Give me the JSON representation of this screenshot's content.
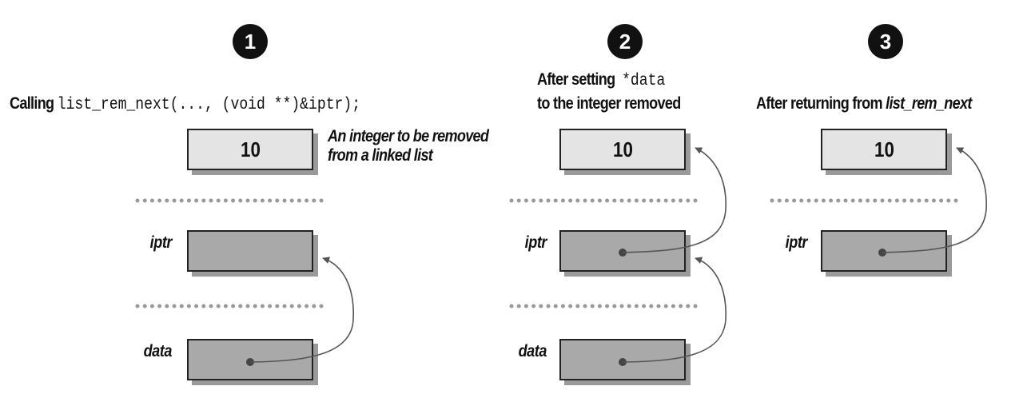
{
  "steps": [
    {
      "number": "1",
      "caption_prefix": "Calling ",
      "caption_code": "list_rem_next(..., (void **)&iptr);",
      "annotation_line1": "An integer to be removed",
      "annotation_line2": "from a linked list",
      "top_value": "10",
      "iptr_label": "iptr",
      "data_label": "data"
    },
    {
      "number": "2",
      "caption_line1_text": "After setting",
      "caption_line1_code": "*data",
      "caption_line2": "to the integer removed",
      "top_value": "10",
      "iptr_label": "iptr",
      "data_label": "data"
    },
    {
      "number": "3",
      "caption_prefix": "After returning from ",
      "caption_italic": "list_rem_next",
      "top_value": "10",
      "iptr_label": "iptr"
    }
  ],
  "colors": {
    "ink": "#111111",
    "light_box": "#e4e4e4",
    "dark_box": "#a9a9a9",
    "shadow": "#9a9a9a",
    "dots": "#999999",
    "arrow": "#555555"
  }
}
